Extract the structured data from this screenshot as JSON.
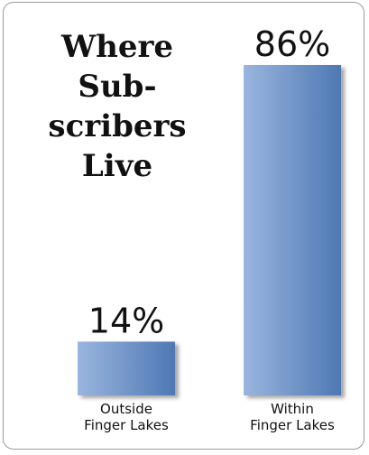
{
  "chart_data": {
    "type": "bar",
    "title_lines": [
      "Where Sub-",
      "scribers Live"
    ],
    "categories": [
      [
        "Outside",
        "Finger Lakes"
      ],
      [
        "Within",
        "Finger Lakes"
      ]
    ],
    "values": [
      14,
      86
    ],
    "value_labels": [
      "14%",
      "86%"
    ],
    "ylim": [
      0,
      86
    ],
    "bar_color_start": "#9ab5de",
    "bar_color_end": "#4e78b4",
    "grid": false
  }
}
